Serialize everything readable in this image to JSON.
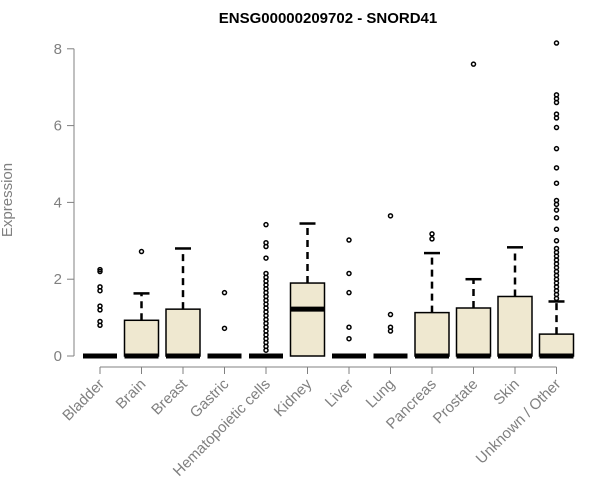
{
  "chart_data": {
    "type": "boxplot",
    "title": "ENSG00000209702 - SNORD41",
    "ylabel": "Expression",
    "xlabel": "",
    "ylim": [
      0,
      8.2
    ],
    "yticks": [
      0,
      2,
      4,
      6,
      8
    ],
    "grid": false,
    "colors": {
      "box_fill": "#efe8d0",
      "stroke": "#000000",
      "axis": "#808080"
    },
    "categories": [
      "Bladder",
      "Brain",
      "Breast",
      "Gastric",
      "Hematopoietic cells",
      "Kidney",
      "Liver",
      "Lung",
      "Pancreas",
      "Prostate",
      "Skin",
      "Unknown / Other"
    ],
    "boxes": [
      {
        "category": "Bladder",
        "q1": 0,
        "median": 0,
        "q3": 0,
        "whisker_low": 0,
        "whisker_high": 0,
        "outliers": [
          0.8,
          0.9,
          1.2,
          1.3,
          1.7,
          1.8,
          2.2,
          2.25
        ]
      },
      {
        "category": "Brain",
        "q1": 0,
        "median": 0,
        "q3": 0.93,
        "whisker_low": 0,
        "whisker_high": 1.63,
        "outliers": [
          2.72
        ]
      },
      {
        "category": "Breast",
        "q1": 0,
        "median": 0,
        "q3": 1.22,
        "whisker_low": 0,
        "whisker_high": 2.8,
        "outliers": []
      },
      {
        "category": "Gastric",
        "q1": 0,
        "median": 0,
        "q3": 0,
        "whisker_low": 0,
        "whisker_high": 0,
        "outliers": [
          0.72,
          1.65
        ]
      },
      {
        "category": "Hematopoietic cells",
        "q1": 0,
        "median": 0,
        "q3": 0,
        "whisker_low": 0,
        "whisker_high": 0,
        "outliers": [
          0.15,
          0.25,
          0.35,
          0.45,
          0.55,
          0.65,
          0.75,
          0.85,
          0.95,
          1.05,
          1.15,
          1.25,
          1.35,
          1.45,
          1.55,
          1.65,
          1.75,
          1.85,
          1.95,
          2.05,
          2.15,
          2.55,
          2.85,
          2.95,
          3.42
        ]
      },
      {
        "category": "Kidney",
        "q1": 0,
        "median": 1.22,
        "q3": 1.9,
        "whisker_low": 0,
        "whisker_high": 3.45,
        "outliers": []
      },
      {
        "category": "Liver",
        "q1": 0,
        "median": 0,
        "q3": 0,
        "whisker_low": 0,
        "whisker_high": 0,
        "outliers": [
          0.45,
          0.75,
          1.65,
          2.15,
          3.02
        ]
      },
      {
        "category": "Lung",
        "q1": 0,
        "median": 0,
        "q3": 0,
        "whisker_low": 0,
        "whisker_high": 0,
        "outliers": [
          0.65,
          0.75,
          1.08,
          3.65
        ]
      },
      {
        "category": "Pancreas",
        "q1": 0,
        "median": 0,
        "q3": 1.13,
        "whisker_low": 0,
        "whisker_high": 2.68,
        "outliers": [
          3.05,
          3.18
        ]
      },
      {
        "category": "Prostate",
        "q1": 0,
        "median": 0,
        "q3": 1.25,
        "whisker_low": 0,
        "whisker_high": 2.0,
        "outliers": [
          7.6
        ]
      },
      {
        "category": "Skin",
        "q1": 0,
        "median": 0,
        "q3": 1.55,
        "whisker_low": 0,
        "whisker_high": 2.83,
        "outliers": []
      },
      {
        "category": "Unknown / Other",
        "q1": 0,
        "median": 0,
        "q3": 0.57,
        "whisker_low": 0,
        "whisker_high": 1.42,
        "outliers": [
          1.5,
          1.6,
          1.7,
          1.8,
          1.9,
          2.0,
          2.1,
          2.2,
          2.3,
          2.4,
          2.5,
          2.6,
          2.7,
          2.8,
          3.0,
          3.3,
          3.6,
          3.8,
          3.95,
          4.05,
          4.5,
          4.9,
          5.4,
          5.95,
          6.2,
          6.3,
          6.6,
          6.7,
          6.8,
          8.15
        ]
      }
    ]
  }
}
